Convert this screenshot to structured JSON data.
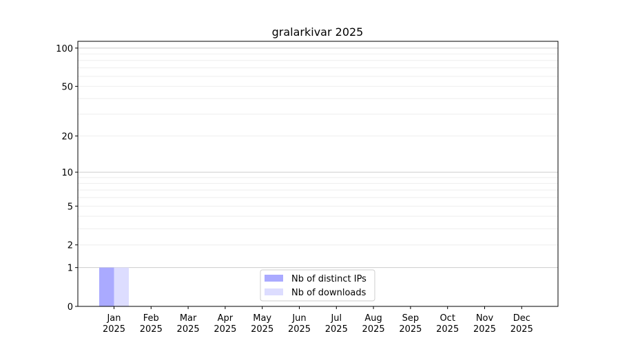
{
  "chart_data": {
    "type": "bar",
    "title": "gralarkivar 2025",
    "xlabel": "",
    "ylabel": "",
    "y_scale": "log(1+y)",
    "ylim": [
      0,
      113
    ],
    "y_ticks": [
      0,
      1,
      2,
      5,
      10,
      20,
      50,
      100
    ],
    "y_minor_grid": [
      3,
      4,
      6,
      7,
      8,
      9,
      30,
      40,
      60,
      70,
      80,
      90
    ],
    "grid": true,
    "legend_position": "bottom-center",
    "categories": [
      "Jan\n2025",
      "Feb\n2025",
      "Mar\n2025",
      "Apr\n2025",
      "May\n2025",
      "Jun\n2025",
      "Jul\n2025",
      "Aug\n2025",
      "Sep\n2025",
      "Oct\n2025",
      "Nov\n2025",
      "Dec\n2025"
    ],
    "series": [
      {
        "name": "Nb of distinct IPs",
        "color": "#aaaaff",
        "values": [
          1,
          0,
          0,
          0,
          0,
          0,
          0,
          0,
          0,
          0,
          0,
          0
        ]
      },
      {
        "name": "Nb of downloads",
        "color": "#ddddff",
        "values": [
          1,
          0,
          0,
          0,
          0,
          0,
          0,
          0,
          0,
          0,
          0,
          0
        ]
      }
    ]
  }
}
